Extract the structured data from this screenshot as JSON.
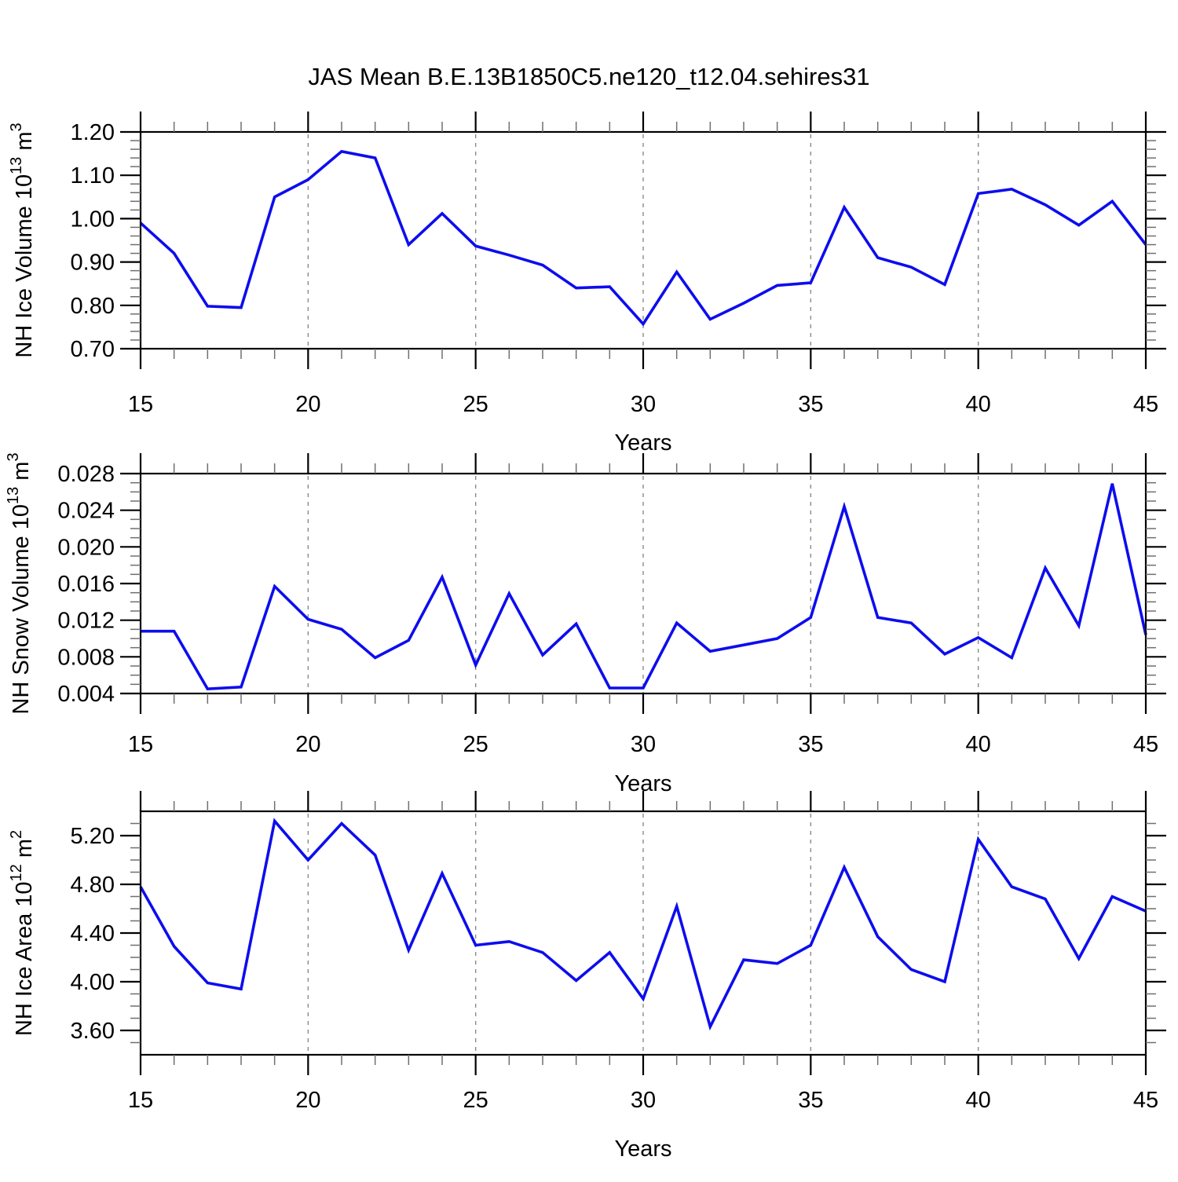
{
  "title": "JAS Mean B.E.13B1850C5.ne120_t12.04.sehires31",
  "line_color": "#0D0DEE",
  "grid_color": "#8a8a8a",
  "axis_color": "#000000",
  "minor_tick_color": "#6f6f6f",
  "chart_data": [
    {
      "type": "line",
      "ylabel_text": "NH Ice Volume 10^13 m^3",
      "ylabel": {
        "prefix": "NH Ice Volume 10",
        "exponent": "13",
        "unit": " m",
        "unit_exponent": "3"
      },
      "xlabel": "Years",
      "xlim": [
        15,
        45
      ],
      "x": [
        15,
        16,
        17,
        18,
        19,
        20,
        21,
        22,
        23,
        24,
        25,
        26,
        27,
        28,
        29,
        30,
        31,
        32,
        33,
        34,
        35,
        36,
        37,
        38,
        39,
        40,
        41,
        42,
        43,
        44,
        45
      ],
      "values": [
        0.99,
        0.92,
        0.798,
        0.795,
        1.05,
        1.09,
        1.155,
        1.14,
        0.94,
        1.012,
        0.937,
        0.916,
        0.893,
        0.84,
        0.843,
        0.757,
        0.877,
        0.768,
        0.805,
        0.846,
        0.852,
        1.026,
        0.91,
        0.888,
        0.848,
        1.058,
        1.068,
        1.032,
        0.985,
        1.04,
        0.94
      ],
      "ylim": [
        0.7,
        1.2
      ],
      "ytick_values": [
        0.7,
        0.8,
        0.9,
        1.0,
        1.1,
        1.2
      ],
      "ytick_labels": [
        "0.70",
        "0.80",
        "0.90",
        "1.00",
        "1.10",
        "1.20"
      ],
      "y_minor_step": 0.02,
      "xticks": [
        15,
        20,
        25,
        30,
        35,
        40,
        45
      ],
      "xtick_labels": [
        "15",
        "20",
        "25",
        "30",
        "35",
        "40",
        "45"
      ],
      "x_minor_step": 1,
      "gridlines_x": [
        20,
        25,
        30,
        35,
        40
      ]
    },
    {
      "type": "line",
      "ylabel_text": "NH Snow Volume 10^13 m^3",
      "ylabel": {
        "prefix": "NH Snow Volume 10",
        "exponent": "13",
        "unit": " m",
        "unit_exponent": "3"
      },
      "xlabel": "Years",
      "xlim": [
        15,
        45
      ],
      "x": [
        15,
        16,
        17,
        18,
        19,
        20,
        21,
        22,
        23,
        24,
        25,
        26,
        27,
        28,
        29,
        30,
        31,
        32,
        33,
        34,
        35,
        36,
        37,
        38,
        39,
        40,
        41,
        42,
        43,
        44,
        45
      ],
      "values": [
        0.0108,
        0.0108,
        0.0045,
        0.0047,
        0.0157,
        0.0121,
        0.011,
        0.0079,
        0.0098,
        0.0167,
        0.0071,
        0.0149,
        0.0082,
        0.0116,
        0.0046,
        0.0046,
        0.0117,
        0.0086,
        0.0093,
        0.01,
        0.0123,
        0.0244,
        0.0123,
        0.0117,
        0.0083,
        0.0101,
        0.0079,
        0.0177,
        0.0114,
        0.0269,
        0.0104
      ],
      "ylim": [
        0.004,
        0.028
      ],
      "ytick_values": [
        0.004,
        0.008,
        0.012,
        0.016,
        0.02,
        0.024,
        0.028
      ],
      "ytick_labels": [
        "0.004",
        "0.008",
        "0.012",
        "0.016",
        "0.020",
        "0.024",
        "0.028"
      ],
      "y_minor_step": 0.001,
      "xticks": [
        15,
        20,
        25,
        30,
        35,
        40,
        45
      ],
      "xtick_labels": [
        "15",
        "20",
        "25",
        "30",
        "35",
        "40",
        "45"
      ],
      "x_minor_step": 1,
      "gridlines_x": [
        20,
        25,
        30,
        35,
        40
      ]
    },
    {
      "type": "line",
      "ylabel_text": "NH Ice Area 10^12 m^2",
      "ylabel": {
        "prefix": "NH Ice Area 10",
        "exponent": "12",
        "unit": " m",
        "unit_exponent": "2"
      },
      "xlabel": "Years",
      "xlim": [
        15,
        45
      ],
      "x": [
        15,
        16,
        17,
        18,
        19,
        20,
        21,
        22,
        23,
        24,
        25,
        26,
        27,
        28,
        29,
        30,
        31,
        32,
        33,
        34,
        35,
        36,
        37,
        38,
        39,
        40,
        41,
        42,
        43,
        44,
        45
      ],
      "values": [
        4.78,
        4.29,
        3.99,
        3.94,
        5.32,
        5.0,
        5.3,
        5.04,
        4.26,
        4.89,
        4.3,
        4.33,
        4.24,
        4.01,
        4.24,
        3.86,
        4.62,
        3.63,
        4.18,
        4.15,
        4.3,
        4.94,
        4.37,
        4.1,
        4.0,
        5.17,
        4.78,
        4.68,
        4.19,
        4.7,
        4.58
      ],
      "ylim": [
        3.4,
        5.4
      ],
      "ytick_values": [
        3.6,
        4.0,
        4.4,
        4.8,
        5.2
      ],
      "ytick_labels": [
        "3.60",
        "4.00",
        "4.40",
        "4.80",
        "5.20"
      ],
      "y_minor_step": 0.1,
      "xticks": [
        15,
        20,
        25,
        30,
        35,
        40,
        45
      ],
      "xtick_labels": [
        "15",
        "20",
        "25",
        "30",
        "35",
        "40",
        "45"
      ],
      "x_minor_step": 1,
      "gridlines_x": [
        20,
        25,
        30,
        35,
        40
      ]
    }
  ]
}
